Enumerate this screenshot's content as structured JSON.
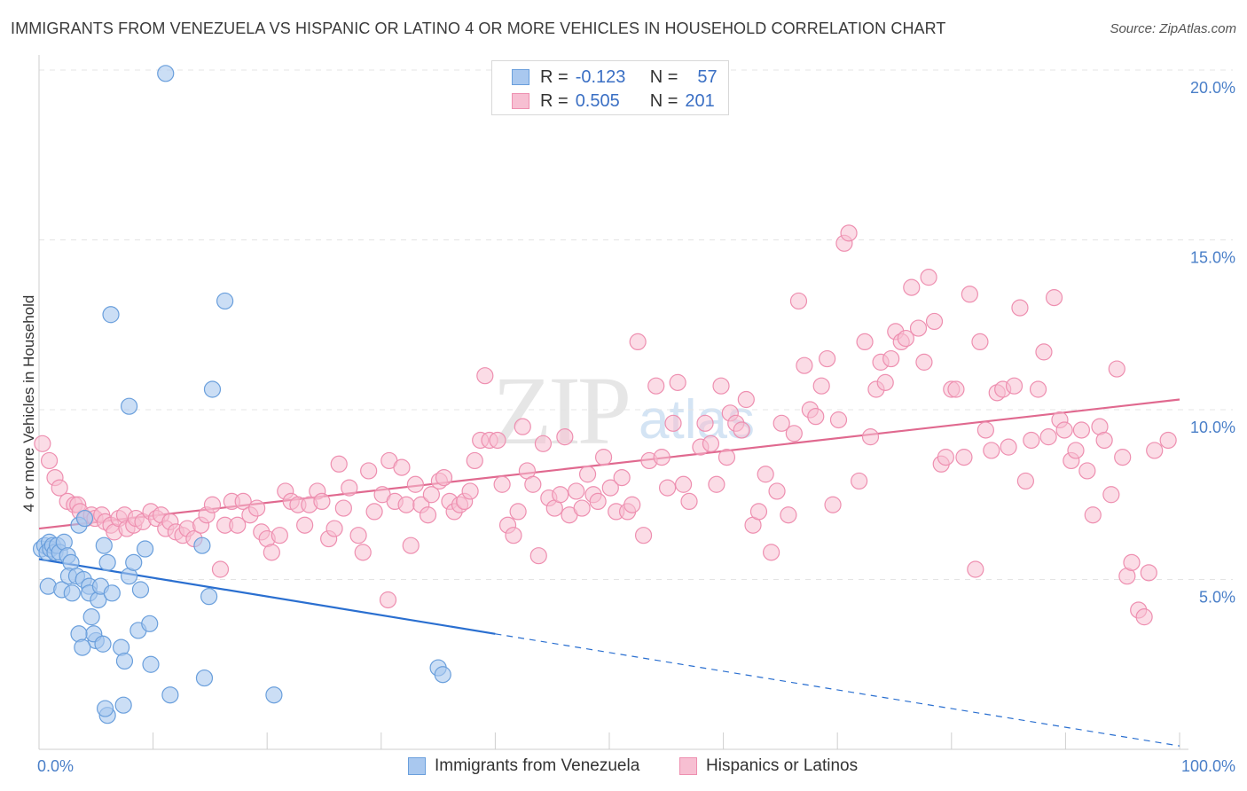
{
  "title": "IMMIGRANTS FROM VENEZUELA VS HISPANIC OR LATINO 4 OR MORE VEHICLES IN HOUSEHOLD CORRELATION CHART",
  "source": "Source: ZipAtlas.com",
  "watermark": {
    "zip": "ZIP",
    "atlas": "atlas"
  },
  "legend": {
    "row1": {
      "r_label": "R =",
      "r_value": "-0.123",
      "n_label": "N =",
      "n_value": "57"
    },
    "row2": {
      "r_label": "R =",
      "r_value": "0.505",
      "n_label": "N =",
      "n_value": "201"
    }
  },
  "bottom_legend": {
    "series1": "Immigrants from Venezuela",
    "series2": "Hispanics or Latinos"
  },
  "colors": {
    "blue_fill": "#a9c8ef",
    "blue_stroke": "#6a9fdc",
    "blue_line": "#2a6fd0",
    "pink_fill": "#f7bfd2",
    "pink_stroke": "#ee8fb0",
    "pink_line": "#e0698f",
    "tick_text": "#4a7fc8",
    "grid": "#e4e4e4"
  },
  "chart_data": {
    "type": "scatter",
    "title": "IMMIGRANTS FROM VENEZUELA VS HISPANIC OR LATINO 4 OR MORE VEHICLES IN HOUSEHOLD CORRELATION CHART",
    "xlabel": "",
    "ylabel": "4 or more Vehicles in Household",
    "xlim": [
      0,
      100
    ],
    "ylim": [
      0,
      20.5
    ],
    "x_tick_labels": [
      "0.0%",
      "100.0%"
    ],
    "y_ticks": [
      5,
      10,
      15,
      20
    ],
    "y_tick_labels": [
      "5.0%",
      "10.0%",
      "15.0%",
      "20.0%"
    ],
    "grid": true,
    "series": [
      {
        "name": "Immigrants from Venezuela",
        "color": "blue",
        "trend": {
          "x0": 0,
          "y0": 5.6,
          "x1": 100,
          "y1": 0.1,
          "solid_until_x": 40
        },
        "points": [
          [
            0.2,
            5.9
          ],
          [
            0.5,
            6.0
          ],
          [
            0.7,
            5.8
          ],
          [
            0.9,
            6.1
          ],
          [
            1.0,
            5.9
          ],
          [
            1.2,
            6.0
          ],
          [
            1.4,
            5.8
          ],
          [
            1.6,
            6.0
          ],
          [
            1.8,
            5.8
          ],
          [
            2.2,
            6.1
          ],
          [
            2.5,
            5.7
          ],
          [
            0.8,
            4.8
          ],
          [
            2.0,
            4.7
          ],
          [
            2.8,
            5.5
          ],
          [
            2.6,
            5.1
          ],
          [
            2.9,
            4.6
          ],
          [
            3.3,
            5.1
          ],
          [
            3.5,
            6.6
          ],
          [
            3.9,
            5.0
          ],
          [
            4.0,
            6.8
          ],
          [
            4.4,
            4.8
          ],
          [
            4.4,
            4.6
          ],
          [
            4.6,
            3.9
          ],
          [
            5.0,
            3.2
          ],
          [
            4.8,
            3.4
          ],
          [
            5.2,
            4.4
          ],
          [
            5.4,
            4.8
          ],
          [
            5.6,
            3.1
          ],
          [
            5.7,
            6.0
          ],
          [
            6.0,
            5.5
          ],
          [
            6.4,
            4.6
          ],
          [
            3.5,
            3.4
          ],
          [
            3.8,
            3.0
          ],
          [
            6.3,
            12.8
          ],
          [
            7.2,
            3.0
          ],
          [
            7.5,
            2.6
          ],
          [
            7.9,
            10.1
          ],
          [
            7.9,
            5.1
          ],
          [
            8.3,
            5.5
          ],
          [
            8.7,
            3.5
          ],
          [
            8.9,
            4.7
          ],
          [
            9.8,
            2.5
          ],
          [
            9.3,
            5.9
          ],
          [
            9.7,
            3.7
          ],
          [
            11.5,
            1.6
          ],
          [
            11.1,
            19.9
          ],
          [
            14.5,
            2.1
          ],
          [
            14.9,
            4.5
          ],
          [
            14.3,
            6.0
          ],
          [
            15.2,
            10.6
          ],
          [
            16.3,
            13.2
          ],
          [
            20.6,
            1.6
          ],
          [
            6.0,
            1.0
          ],
          [
            5.8,
            1.2
          ],
          [
            7.4,
            1.3
          ],
          [
            35.0,
            2.4
          ],
          [
            35.4,
            2.2
          ]
        ]
      },
      {
        "name": "Hispanics or Latinos",
        "color": "pink",
        "trend": {
          "x0": 0,
          "y0": 6.5,
          "x1": 100,
          "y1": 10.3
        },
        "points": [
          [
            0.3,
            9.0
          ],
          [
            0.9,
            8.5
          ],
          [
            1.4,
            8.0
          ],
          [
            1.8,
            7.7
          ],
          [
            2.5,
            7.3
          ],
          [
            3.1,
            7.2
          ],
          [
            3.4,
            7.2
          ],
          [
            3.6,
            7.0
          ],
          [
            4.1,
            6.8
          ],
          [
            4.6,
            6.9
          ],
          [
            4.9,
            6.8
          ],
          [
            5.5,
            6.9
          ],
          [
            5.8,
            6.7
          ],
          [
            6.3,
            6.6
          ],
          [
            6.6,
            6.4
          ],
          [
            7.0,
            6.8
          ],
          [
            7.5,
            6.9
          ],
          [
            7.7,
            6.5
          ],
          [
            8.3,
            6.6
          ],
          [
            8.5,
            6.8
          ],
          [
            9.1,
            6.7
          ],
          [
            9.8,
            7.0
          ],
          [
            10.3,
            6.8
          ],
          [
            10.7,
            6.9
          ],
          [
            11.1,
            6.5
          ],
          [
            11.5,
            6.7
          ],
          [
            12.0,
            6.4
          ],
          [
            12.6,
            6.3
          ],
          [
            13.0,
            6.5
          ],
          [
            13.6,
            6.2
          ],
          [
            14.2,
            6.6
          ],
          [
            14.7,
            6.9
          ],
          [
            15.2,
            7.2
          ],
          [
            15.9,
            5.3
          ],
          [
            16.3,
            6.6
          ],
          [
            16.9,
            7.3
          ],
          [
            17.4,
            6.6
          ],
          [
            17.9,
            7.3
          ],
          [
            18.5,
            6.9
          ],
          [
            19.1,
            7.1
          ],
          [
            19.5,
            6.4
          ],
          [
            20.0,
            6.2
          ],
          [
            20.4,
            5.8
          ],
          [
            21.1,
            6.3
          ],
          [
            21.6,
            7.6
          ],
          [
            22.1,
            7.3
          ],
          [
            22.7,
            7.2
          ],
          [
            23.3,
            6.6
          ],
          [
            23.7,
            7.2
          ],
          [
            24.4,
            7.6
          ],
          [
            24.8,
            7.3
          ],
          [
            25.4,
            6.2
          ],
          [
            25.9,
            6.5
          ],
          [
            26.3,
            8.4
          ],
          [
            26.7,
            7.1
          ],
          [
            27.2,
            7.7
          ],
          [
            28.0,
            6.3
          ],
          [
            28.4,
            5.8
          ],
          [
            28.9,
            8.2
          ],
          [
            29.4,
            7.0
          ],
          [
            30.1,
            7.5
          ],
          [
            30.7,
            8.5
          ],
          [
            31.2,
            7.3
          ],
          [
            31.8,
            8.3
          ],
          [
            32.2,
            7.2
          ],
          [
            32.6,
            6.0
          ],
          [
            33.0,
            7.8
          ],
          [
            33.5,
            7.2
          ],
          [
            34.1,
            6.9
          ],
          [
            34.4,
            7.5
          ],
          [
            35.1,
            7.9
          ],
          [
            35.5,
            8.0
          ],
          [
            36.0,
            7.3
          ],
          [
            36.4,
            7.0
          ],
          [
            36.9,
            7.2
          ],
          [
            37.3,
            7.3
          ],
          [
            37.8,
            7.6
          ],
          [
            38.2,
            8.5
          ],
          [
            38.7,
            9.1
          ],
          [
            39.1,
            11.0
          ],
          [
            39.5,
            9.1
          ],
          [
            40.2,
            9.1
          ],
          [
            40.6,
            7.8
          ],
          [
            41.1,
            6.6
          ],
          [
            41.6,
            6.3
          ],
          [
            42.0,
            7.0
          ],
          [
            42.4,
            9.5
          ],
          [
            42.8,
            8.2
          ],
          [
            43.3,
            7.8
          ],
          [
            43.8,
            5.7
          ],
          [
            44.2,
            9.0
          ],
          [
            44.7,
            7.4
          ],
          [
            45.2,
            7.1
          ],
          [
            45.7,
            7.5
          ],
          [
            46.1,
            9.2
          ],
          [
            46.5,
            6.9
          ],
          [
            47.1,
            7.6
          ],
          [
            47.6,
            7.1
          ],
          [
            48.1,
            8.1
          ],
          [
            48.6,
            7.5
          ],
          [
            49.0,
            7.3
          ],
          [
            49.5,
            8.6
          ],
          [
            50.1,
            7.7
          ],
          [
            50.6,
            7.0
          ],
          [
            51.1,
            8.0
          ],
          [
            51.6,
            7.0
          ],
          [
            52.0,
            7.2
          ],
          [
            52.5,
            12.0
          ],
          [
            53.0,
            6.3
          ],
          [
            53.5,
            8.5
          ],
          [
            54.1,
            10.7
          ],
          [
            54.6,
            8.6
          ],
          [
            55.1,
            7.7
          ],
          [
            55.6,
            9.6
          ],
          [
            56.0,
            10.8
          ],
          [
            56.5,
            7.8
          ],
          [
            57.0,
            7.3
          ],
          [
            58.0,
            8.9
          ],
          [
            58.4,
            9.6
          ],
          [
            58.9,
            9.0
          ],
          [
            59.4,
            7.8
          ],
          [
            59.8,
            10.7
          ],
          [
            60.3,
            8.6
          ],
          [
            60.6,
            9.9
          ],
          [
            61.1,
            9.6
          ],
          [
            61.6,
            9.4
          ],
          [
            62.0,
            10.3
          ],
          [
            62.6,
            6.6
          ],
          [
            63.1,
            7.0
          ],
          [
            63.7,
            8.1
          ],
          [
            64.2,
            5.8
          ],
          [
            64.7,
            7.6
          ],
          [
            65.1,
            9.6
          ],
          [
            65.7,
            6.9
          ],
          [
            66.2,
            9.3
          ],
          [
            66.6,
            13.2
          ],
          [
            67.1,
            11.3
          ],
          [
            67.6,
            10.0
          ],
          [
            68.1,
            9.8
          ],
          [
            68.6,
            10.7
          ],
          [
            69.1,
            11.5
          ],
          [
            69.6,
            7.2
          ],
          [
            70.1,
            9.7
          ],
          [
            70.6,
            14.9
          ],
          [
            71.0,
            15.2
          ],
          [
            71.9,
            7.9
          ],
          [
            72.4,
            12.0
          ],
          [
            72.9,
            9.2
          ],
          [
            73.4,
            10.6
          ],
          [
            73.8,
            11.4
          ],
          [
            74.2,
            10.8
          ],
          [
            74.7,
            11.5
          ],
          [
            75.1,
            12.3
          ],
          [
            75.6,
            12.0
          ],
          [
            76.0,
            12.1
          ],
          [
            76.5,
            13.6
          ],
          [
            77.1,
            12.4
          ],
          [
            77.6,
            11.4
          ],
          [
            78.0,
            13.9
          ],
          [
            78.5,
            12.6
          ],
          [
            79.1,
            8.4
          ],
          [
            79.5,
            8.6
          ],
          [
            80.0,
            10.6
          ],
          [
            80.4,
            10.6
          ],
          [
            81.1,
            8.6
          ],
          [
            81.6,
            13.4
          ],
          [
            82.1,
            5.3
          ],
          [
            82.5,
            12.0
          ],
          [
            83.0,
            9.4
          ],
          [
            83.5,
            8.8
          ],
          [
            84.0,
            10.5
          ],
          [
            84.5,
            10.6
          ],
          [
            85.0,
            8.9
          ],
          [
            85.5,
            10.7
          ],
          [
            86.0,
            13.0
          ],
          [
            86.5,
            7.9
          ],
          [
            87.0,
            9.1
          ],
          [
            87.6,
            10.6
          ],
          [
            88.1,
            11.7
          ],
          [
            88.5,
            9.2
          ],
          [
            89.0,
            13.3
          ],
          [
            89.5,
            9.7
          ],
          [
            89.9,
            9.4
          ],
          [
            90.5,
            8.5
          ],
          [
            90.9,
            8.8
          ],
          [
            91.4,
            9.4
          ],
          [
            91.9,
            8.2
          ],
          [
            92.4,
            6.9
          ],
          [
            93.0,
            9.5
          ],
          [
            93.4,
            9.1
          ],
          [
            94.0,
            7.5
          ],
          [
            94.5,
            11.2
          ],
          [
            95.0,
            8.6
          ],
          [
            95.4,
            5.1
          ],
          [
            95.8,
            5.5
          ],
          [
            96.4,
            4.1
          ],
          [
            96.9,
            3.9
          ],
          [
            97.3,
            5.2
          ],
          [
            97.8,
            8.8
          ],
          [
            99.0,
            9.1
          ],
          [
            30.6,
            4.4
          ]
        ]
      }
    ]
  }
}
